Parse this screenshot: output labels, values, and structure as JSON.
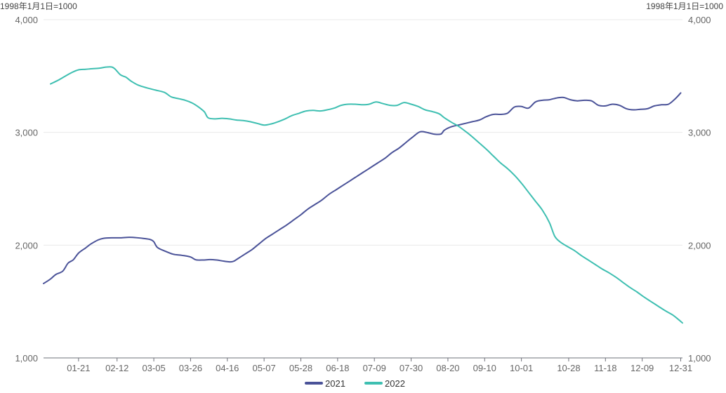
{
  "chart_data": {
    "type": "line",
    "unit_note_left": "1998年1月1日=1000",
    "unit_note_right": "1998年1月1日=1000",
    "y_ticks": [
      "1,000",
      "2,000",
      "3,000",
      "4,000"
    ],
    "y_tick_values": [
      1000,
      2000,
      3000,
      4000
    ],
    "ylim": [
      1000,
      4000
    ],
    "x_tick_labels": [
      "01-21",
      "02-12",
      "03-05",
      "03-26",
      "04-16",
      "05-07",
      "05-28",
      "06-18",
      "07-09",
      "07-30",
      "08-20",
      "09-10",
      "10-01",
      "10-28",
      "11-18",
      "12-09",
      "12-31"
    ],
    "x_tick_days": [
      21,
      43,
      64,
      85,
      106,
      127,
      148,
      169,
      190,
      211,
      232,
      253,
      274,
      301,
      322,
      343,
      365
    ],
    "xlim": [
      1,
      366
    ],
    "grid": true,
    "legend_position": "bottom-center",
    "series": [
      {
        "name": "2021",
        "color": "#4a5298",
        "points": [
          [
            1,
            1660
          ],
          [
            5,
            1700
          ],
          [
            8,
            1740
          ],
          [
            12,
            1770
          ],
          [
            15,
            1840
          ],
          [
            18,
            1870
          ],
          [
            21,
            1930
          ],
          [
            25,
            1975
          ],
          [
            28,
            2010
          ],
          [
            32,
            2045
          ],
          [
            35,
            2060
          ],
          [
            40,
            2065
          ],
          [
            45,
            2065
          ],
          [
            50,
            2070
          ],
          [
            55,
            2065
          ],
          [
            58,
            2060
          ],
          [
            62,
            2050
          ],
          [
            64,
            2030
          ],
          [
            66,
            1980
          ],
          [
            70,
            1950
          ],
          [
            75,
            1920
          ],
          [
            80,
            1910
          ],
          [
            85,
            1895
          ],
          [
            88,
            1870
          ],
          [
            92,
            1868
          ],
          [
            96,
            1872
          ],
          [
            100,
            1868
          ],
          [
            104,
            1858
          ],
          [
            108,
            1852
          ],
          [
            110,
            1860
          ],
          [
            112,
            1880
          ],
          [
            116,
            1920
          ],
          [
            120,
            1960
          ],
          [
            124,
            2010
          ],
          [
            128,
            2060
          ],
          [
            132,
            2100
          ],
          [
            136,
            2140
          ],
          [
            140,
            2180
          ],
          [
            144,
            2225
          ],
          [
            148,
            2270
          ],
          [
            152,
            2320
          ],
          [
            156,
            2360
          ],
          [
            160,
            2400
          ],
          [
            164,
            2450
          ],
          [
            168,
            2490
          ],
          [
            172,
            2530
          ],
          [
            176,
            2570
          ],
          [
            180,
            2610
          ],
          [
            184,
            2650
          ],
          [
            188,
            2690
          ],
          [
            192,
            2730
          ],
          [
            196,
            2770
          ],
          [
            200,
            2820
          ],
          [
            204,
            2860
          ],
          [
            208,
            2910
          ],
          [
            212,
            2960
          ],
          [
            216,
            3005
          ],
          [
            220,
            3000
          ],
          [
            224,
            2985
          ],
          [
            228,
            2985
          ],
          [
            230,
            3020
          ],
          [
            234,
            3050
          ],
          [
            238,
            3065
          ],
          [
            242,
            3080
          ],
          [
            246,
            3095
          ],
          [
            250,
            3110
          ],
          [
            254,
            3140
          ],
          [
            258,
            3160
          ],
          [
            262,
            3160
          ],
          [
            266,
            3170
          ],
          [
            270,
            3225
          ],
          [
            274,
            3230
          ],
          [
            278,
            3215
          ],
          [
            282,
            3270
          ],
          [
            286,
            3285
          ],
          [
            290,
            3290
          ],
          [
            294,
            3305
          ],
          [
            298,
            3310
          ],
          [
            302,
            3290
          ],
          [
            306,
            3280
          ],
          [
            310,
            3285
          ],
          [
            314,
            3280
          ],
          [
            318,
            3240
          ],
          [
            322,
            3235
          ],
          [
            326,
            3250
          ],
          [
            330,
            3240
          ],
          [
            334,
            3210
          ],
          [
            338,
            3200
          ],
          [
            342,
            3205
          ],
          [
            346,
            3210
          ],
          [
            350,
            3235
          ],
          [
            354,
            3245
          ],
          [
            358,
            3250
          ],
          [
            362,
            3300
          ],
          [
            365,
            3350
          ]
        ]
      },
      {
        "name": "2022",
        "color": "#3ebfb1",
        "points": [
          [
            5,
            3430
          ],
          [
            9,
            3460
          ],
          [
            13,
            3495
          ],
          [
            17,
            3530
          ],
          [
            21,
            3555
          ],
          [
            25,
            3560
          ],
          [
            29,
            3565
          ],
          [
            33,
            3570
          ],
          [
            37,
            3580
          ],
          [
            40,
            3580
          ],
          [
            42,
            3560
          ],
          [
            45,
            3510
          ],
          [
            48,
            3490
          ],
          [
            51,
            3455
          ],
          [
            55,
            3420
          ],
          [
            60,
            3395
          ],
          [
            65,
            3375
          ],
          [
            70,
            3355
          ],
          [
            74,
            3315
          ],
          [
            78,
            3300
          ],
          [
            82,
            3285
          ],
          [
            86,
            3260
          ],
          [
            90,
            3220
          ],
          [
            93,
            3180
          ],
          [
            95,
            3130
          ],
          [
            99,
            3120
          ],
          [
            103,
            3125
          ],
          [
            107,
            3120
          ],
          [
            111,
            3110
          ],
          [
            115,
            3105
          ],
          [
            119,
            3095
          ],
          [
            123,
            3080
          ],
          [
            127,
            3065
          ],
          [
            131,
            3075
          ],
          [
            135,
            3095
          ],
          [
            139,
            3120
          ],
          [
            143,
            3150
          ],
          [
            147,
            3170
          ],
          [
            151,
            3190
          ],
          [
            155,
            3195
          ],
          [
            159,
            3190
          ],
          [
            163,
            3200
          ],
          [
            167,
            3215
          ],
          [
            171,
            3240
          ],
          [
            175,
            3250
          ],
          [
            179,
            3250
          ],
          [
            183,
            3245
          ],
          [
            187,
            3250
          ],
          [
            191,
            3270
          ],
          [
            195,
            3255
          ],
          [
            199,
            3240
          ],
          [
            203,
            3240
          ],
          [
            207,
            3265
          ],
          [
            211,
            3250
          ],
          [
            215,
            3230
          ],
          [
            219,
            3200
          ],
          [
            223,
            3185
          ],
          [
            227,
            3165
          ],
          [
            230,
            3130
          ],
          [
            234,
            3090
          ],
          [
            238,
            3055
          ],
          [
            242,
            3010
          ],
          [
            246,
            2960
          ],
          [
            250,
            2905
          ],
          [
            254,
            2850
          ],
          [
            258,
            2790
          ],
          [
            262,
            2730
          ],
          [
            266,
            2680
          ],
          [
            270,
            2620
          ],
          [
            274,
            2550
          ],
          [
            278,
            2470
          ],
          [
            282,
            2390
          ],
          [
            286,
            2310
          ],
          [
            290,
            2200
          ],
          [
            293,
            2080
          ],
          [
            296,
            2030
          ],
          [
            300,
            1990
          ],
          [
            304,
            1955
          ],
          [
            308,
            1910
          ],
          [
            312,
            1870
          ],
          [
            316,
            1830
          ],
          [
            320,
            1790
          ],
          [
            324,
            1755
          ],
          [
            328,
            1715
          ],
          [
            332,
            1670
          ],
          [
            336,
            1625
          ],
          [
            340,
            1585
          ],
          [
            344,
            1540
          ],
          [
            348,
            1500
          ],
          [
            352,
            1460
          ],
          [
            356,
            1420
          ],
          [
            360,
            1385
          ],
          [
            363,
            1350
          ],
          [
            366,
            1310
          ]
        ]
      }
    ]
  }
}
